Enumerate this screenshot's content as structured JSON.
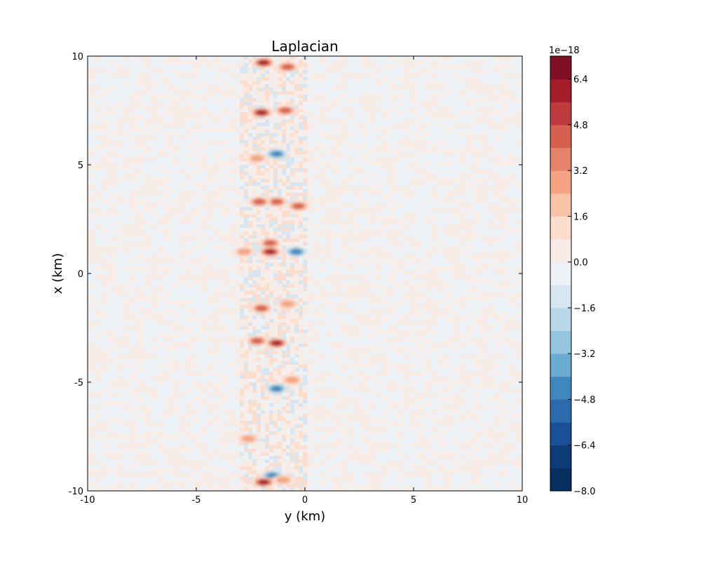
{
  "chart_data": {
    "type": "heatmap",
    "subtype": "filled-contour",
    "title": "Laplacian",
    "xlabel": "y (km)",
    "ylabel": "x (km)",
    "xlim": [
      -10,
      10
    ],
    "ylim": [
      -10,
      10
    ],
    "x_ticks": [
      -10,
      -5,
      0,
      5,
      10
    ],
    "x_tick_labels": [
      "-10",
      "-5",
      "0",
      "5",
      "10"
    ],
    "y_ticks": [
      -10,
      -5,
      0,
      5,
      10
    ],
    "y_tick_labels": [
      "-10",
      "-5",
      "0",
      "5",
      "10"
    ],
    "grid": false,
    "colormap": "RdBu_r",
    "colorbar": {
      "multiplier_label": "1e−18",
      "vmin": -8.0,
      "vmax": 7.2,
      "level_step": 0.8,
      "tick_values": [
        -8.0,
        -6.4,
        -4.8,
        -3.2,
        -1.6,
        0.0,
        1.6,
        3.2,
        4.8,
        6.4
      ],
      "tick_labels": [
        "−8.0",
        "−6.4",
        "−4.8",
        "−3.2",
        "−1.6",
        "0.0",
        "1.6",
        "3.2",
        "4.8",
        "6.4"
      ],
      "level_colors": [
        "#053061",
        "#0d3b75",
        "#1a5095",
        "#2b6bac",
        "#3f88be",
        "#6aabd1",
        "#93c5de",
        "#b8d7e8",
        "#d6e7f1",
        "#edf2f6",
        "#f8ece6",
        "#fcdecf",
        "#f9c3a8",
        "#f4a483",
        "#e5826a",
        "#d5604f",
        "#bd3a3e",
        "#a51c2b",
        "#800f26"
      ]
    },
    "background_band": {
      "y_from": -3.0,
      "y_to": 0.0,
      "description_level": "near 0"
    },
    "features": [
      {
        "y": -1.9,
        "x": 9.7,
        "value": 7.0
      },
      {
        "y": -0.8,
        "x": 9.5,
        "value": 5.5
      },
      {
        "y": -2.0,
        "x": 7.4,
        "value": 6.5
      },
      {
        "y": -0.9,
        "x": 7.5,
        "value": 4.0
      },
      {
        "y": -1.3,
        "x": 5.5,
        "value": -4.5
      },
      {
        "y": -2.2,
        "x": 5.3,
        "value": 3.0
      },
      {
        "y": -1.3,
        "x": 3.3,
        "value": 5.0
      },
      {
        "y": -0.3,
        "x": 3.1,
        "value": 4.0
      },
      {
        "y": -2.1,
        "x": 3.3,
        "value": 4.5
      },
      {
        "y": -1.6,
        "x": 1.4,
        "value": 5.5
      },
      {
        "y": -1.6,
        "x": 1.0,
        "value": 6.0
      },
      {
        "y": -2.8,
        "x": 1.0,
        "value": 3.5
      },
      {
        "y": -0.4,
        "x": 1.0,
        "value": -4.0
      },
      {
        "y": -2.0,
        "x": -1.6,
        "value": 4.0
      },
      {
        "y": -0.8,
        "x": -1.4,
        "value": 3.0
      },
      {
        "y": -1.3,
        "x": -3.2,
        "value": 6.0
      },
      {
        "y": -2.2,
        "x": -3.1,
        "value": 5.0
      },
      {
        "y": -1.3,
        "x": -5.3,
        "value": -5.5
      },
      {
        "y": -0.6,
        "x": -4.9,
        "value": 3.0
      },
      {
        "y": -2.6,
        "x": -7.6,
        "value": 3.5
      },
      {
        "y": -1.5,
        "x": -9.3,
        "value": -4.5
      },
      {
        "y": -1.9,
        "x": -9.6,
        "value": 6.0
      },
      {
        "y": -1.0,
        "x": -9.5,
        "value": 3.0
      }
    ]
  }
}
